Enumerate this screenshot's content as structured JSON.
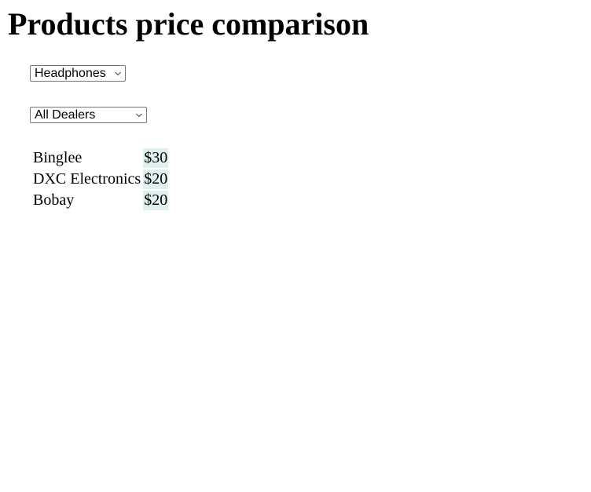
{
  "page": {
    "title": "Products price comparison"
  },
  "filters": {
    "product": {
      "selected": "Headphones"
    },
    "dealer": {
      "selected": "All Dealers"
    }
  },
  "icons": {
    "dropdown": "chevron-down-icon"
  },
  "colors": {
    "price_cell_background": "#dff0ef",
    "select_border": "#767676"
  },
  "prices": {
    "rows": [
      {
        "dealer": "Binglee",
        "price": "$30"
      },
      {
        "dealer": "DXC Electronics",
        "price": "$20"
      },
      {
        "dealer": "Bobay",
        "price": "$20"
      }
    ]
  }
}
